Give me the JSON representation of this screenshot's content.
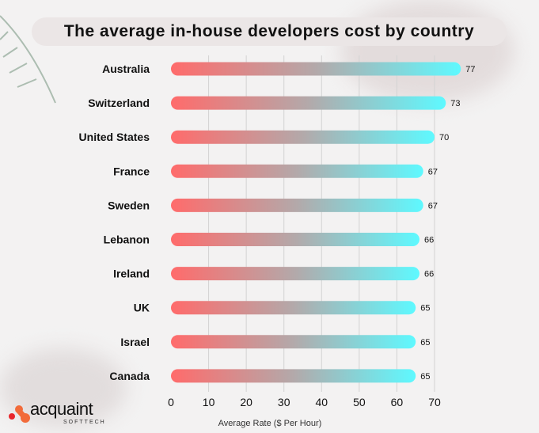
{
  "chart_data": {
    "type": "bar",
    "orientation": "horizontal",
    "title": "The average in-house developers cost by country",
    "xlabel": "Average Rate ($ Per Hour)",
    "ylabel": "",
    "categories": [
      "Australia",
      "Switzerland",
      "United States",
      "France",
      "Sweden",
      "Lebanon",
      "Ireland",
      "UK",
      "Israel",
      "Canada"
    ],
    "values": [
      77,
      73,
      70,
      67,
      67,
      66,
      66,
      65,
      65,
      65
    ],
    "xlim": [
      0,
      77
    ],
    "xticks": [
      0,
      10,
      20,
      30,
      40,
      50,
      60,
      70
    ],
    "grid": true,
    "gradient_colors": [
      "#ff6b6b",
      "#b3a9aa",
      "#5ef9ff"
    ]
  },
  "logo": {
    "name": "acquaint",
    "sub": "SOFTTECH"
  }
}
